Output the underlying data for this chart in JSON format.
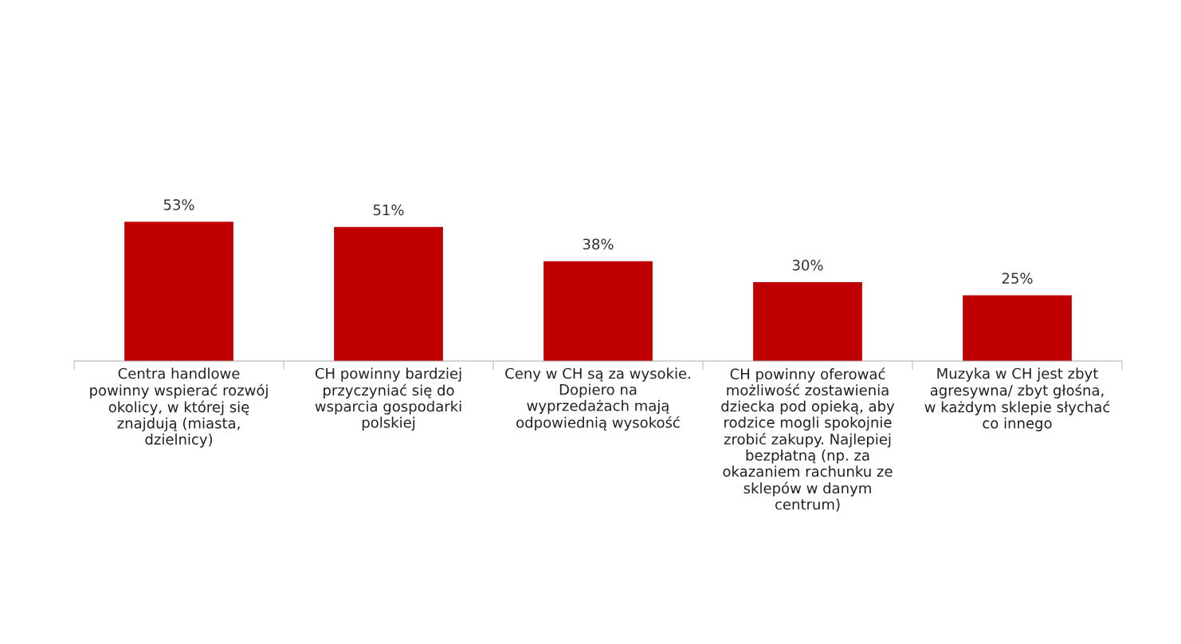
{
  "chart_data": {
    "type": "bar",
    "categories": [
      "Centra handlowe\npowinny wspierać rozwój\nokolicy, w której się\nznajdują (miasta,\ndzielnicy)",
      "CH powinny bardziej\nprzyczyniać się do\nwsparcia gospodarki\npolskiej",
      "Ceny w CH są za wysokie.\nDopiero na\nwyprzedażach mają\nodpowiednią wysokość",
      "CH powinny oferować\nmożliwość zostawienia\ndziecka pod opieką, aby\nrodzice mogli spokojnie\nzrobić zakupy. Najlepiej\nbezpłatną (np. za\nokazaniem rachunku ze\nsklepów w danym\ncentrum)",
      "Muzyka w CH jest zbyt\nagresywna/ zbyt głośna,\nw każdym sklepie słychać\nco innego"
    ],
    "values": [
      53,
      51,
      38,
      30,
      25
    ],
    "value_labels": [
      "53%",
      "51%",
      "38%",
      "30%",
      "25%"
    ],
    "color": "#c00000",
    "grid": false,
    "legend": false
  }
}
